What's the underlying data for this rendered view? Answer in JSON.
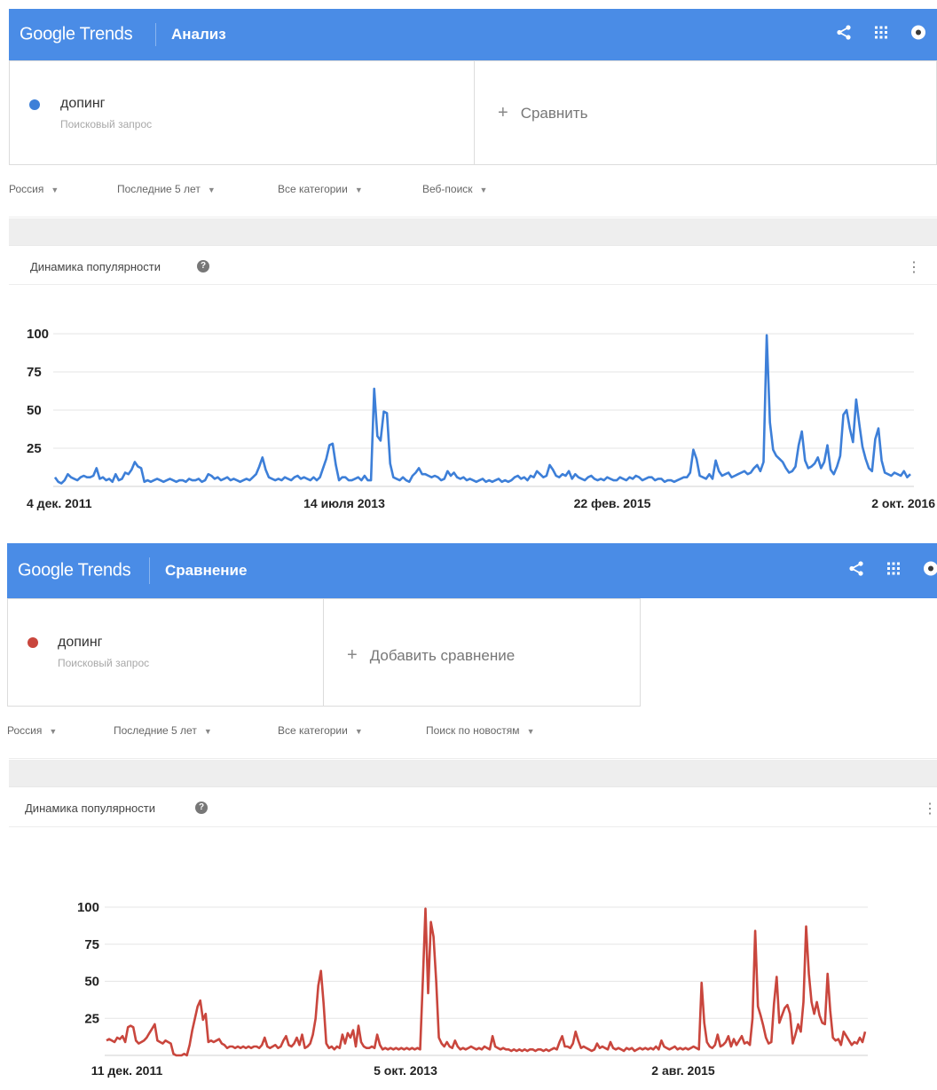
{
  "panels": [
    {
      "header": {
        "brand": "Google Trends",
        "section": "Анализ"
      },
      "term": {
        "name": "допинг",
        "subtitle": "Поисковый запрос",
        "color": "#3d7fd8"
      },
      "compare_label": "Сравнить",
      "filters": [
        "Россия",
        "Последние 5 лет",
        "Все категории",
        "Веб-поиск"
      ],
      "graph_title": "Динамика популярности",
      "icons": [
        "share-icon",
        "apps-grid-icon",
        "account-icon",
        "help-icon",
        "more-vert-icon",
        "plus-icon",
        "dropdown-caret-icon"
      ]
    },
    {
      "header": {
        "brand": "Google Trends",
        "section": "Сравнение"
      },
      "term": {
        "name": "допинг",
        "subtitle": "Поисковый запрос",
        "color": "#c9463d"
      },
      "compare_label": "Добавить сравнение",
      "filters": [
        "Россия",
        "Последние 5 лет",
        "Все категории",
        "Поиск по новостям"
      ],
      "graph_title": "Динамика популярности",
      "icons": [
        "share-icon",
        "apps-grid-icon",
        "account-icon",
        "help-icon",
        "more-vert-icon",
        "plus-icon",
        "dropdown-caret-icon"
      ]
    }
  ],
  "chart_data": [
    {
      "type": "line",
      "x_tick_labels": [
        "4 дек. 2011",
        "14 июля 2013",
        "22 фев. 2015",
        "2 окт. 2016"
      ],
      "y_ticks": [
        100,
        75,
        50,
        25
      ],
      "ylim": [
        0,
        100
      ],
      "color": "#3d7fd8",
      "grid": true,
      "values": [
        6,
        3,
        2,
        4,
        8,
        6,
        5,
        4,
        6,
        7,
        6,
        6,
        7,
        12,
        5,
        6,
        4,
        5,
        3,
        8,
        4,
        5,
        9,
        8,
        11,
        16,
        13,
        12,
        3,
        4,
        3,
        4,
        5,
        4,
        3,
        4,
        5,
        4,
        3,
        4,
        4,
        3,
        5,
        4,
        4,
        5,
        3,
        4,
        8,
        7,
        5,
        6,
        4,
        5,
        6,
        4,
        5,
        4,
        3,
        4,
        5,
        4,
        6,
        8,
        13,
        19,
        11,
        6,
        5,
        4,
        5,
        4,
        6,
        5,
        4,
        6,
        7,
        5,
        6,
        5,
        4,
        6,
        4,
        6,
        12,
        18,
        27,
        28,
        14,
        4,
        6,
        6,
        4,
        4,
        5,
        6,
        4,
        7,
        4,
        4,
        64,
        33,
        30,
        49,
        48,
        15,
        6,
        5,
        4,
        6,
        4,
        3,
        7,
        9,
        12,
        8,
        8,
        7,
        6,
        7,
        6,
        4,
        5,
        10,
        7,
        9,
        6,
        5,
        6,
        4,
        5,
        4,
        3,
        4,
        5,
        3,
        4,
        3,
        4,
        5,
        3,
        4,
        3,
        4,
        6,
        7,
        5,
        6,
        4,
        7,
        6,
        10,
        8,
        6,
        7,
        14,
        11,
        7,
        6,
        8,
        7,
        10,
        5,
        8,
        6,
        5,
        4,
        6,
        7,
        5,
        4,
        5,
        4,
        6,
        5,
        4,
        4,
        6,
        5,
        4,
        6,
        5,
        7,
        6,
        4,
        5,
        6,
        6,
        4,
        5,
        5,
        3,
        4,
        4,
        3,
        4,
        5,
        6,
        6,
        9,
        24,
        18,
        7,
        6,
        5,
        8,
        5,
        17,
        10,
        7,
        8,
        9,
        6,
        7,
        8,
        9,
        10,
        8,
        9,
        12,
        14,
        10,
        16,
        99,
        42,
        24,
        20,
        18,
        16,
        12,
        9,
        10,
        13,
        27,
        36,
        17,
        12,
        13,
        15,
        19,
        12,
        16,
        27,
        11,
        8,
        13,
        20,
        47,
        50,
        38,
        29,
        57,
        41,
        26,
        18,
        12,
        10,
        31,
        38,
        17,
        9,
        8,
        7,
        9,
        8,
        7,
        10,
        6,
        8
      ]
    },
    {
      "type": "line",
      "x_tick_labels": [
        "11 дек. 2011",
        "5 окт. 2013",
        "2 авг. 2015"
      ],
      "y_ticks": [
        100,
        75,
        50,
        25
      ],
      "ylim": [
        0,
        100
      ],
      "color": "#c9463d",
      "grid": true,
      "values": [
        10,
        11,
        10,
        9,
        12,
        11,
        13,
        9,
        19,
        20,
        19,
        10,
        8,
        9,
        10,
        12,
        15,
        18,
        21,
        10,
        9,
        8,
        10,
        9,
        8,
        1,
        0,
        0,
        0,
        1,
        0,
        7,
        17,
        25,
        33,
        37,
        24,
        28,
        9,
        10,
        9,
        10,
        11,
        8,
        7,
        5,
        6,
        6,
        5,
        6,
        5,
        6,
        5,
        6,
        5,
        6,
        6,
        5,
        7,
        12,
        6,
        5,
        6,
        7,
        5,
        6,
        10,
        13,
        7,
        6,
        8,
        12,
        7,
        14,
        5,
        6,
        8,
        14,
        25,
        47,
        57,
        35,
        8,
        5,
        6,
        4,
        6,
        5,
        14,
        8,
        15,
        12,
        17,
        6,
        20,
        9,
        6,
        5,
        5,
        6,
        5,
        14,
        7,
        4,
        5,
        4,
        5,
        4,
        5,
        4,
        5,
        4,
        5,
        4,
        5,
        4,
        5,
        4,
        50,
        99,
        42,
        90,
        80,
        50,
        12,
        8,
        6,
        9,
        6,
        5,
        10,
        6,
        4,
        5,
        4,
        5,
        6,
        5,
        4,
        5,
        4,
        6,
        5,
        4,
        13,
        6,
        5,
        4,
        5,
        4,
        4,
        3,
        4,
        3,
        4,
        3,
        4,
        3,
        4,
        4,
        3,
        4,
        4,
        3,
        4,
        3,
        4,
        5,
        4,
        9,
        13,
        6,
        6,
        5,
        8,
        16,
        10,
        5,
        6,
        5,
        4,
        3,
        4,
        8,
        5,
        6,
        5,
        4,
        9,
        5,
        4,
        5,
        4,
        3,
        5,
        4,
        5,
        3,
        4,
        5,
        4,
        5,
        4,
        5,
        4,
        6,
        4,
        10,
        6,
        5,
        4,
        5,
        6,
        4,
        5,
        4,
        5,
        4,
        5,
        6,
        5,
        4,
        49,
        22,
        9,
        6,
        5,
        7,
        14,
        6,
        7,
        9,
        13,
        6,
        11,
        7,
        10,
        13,
        8,
        9,
        7,
        25,
        84,
        33,
        27,
        20,
        12,
        8,
        9,
        35,
        53,
        22,
        27,
        32,
        34,
        28,
        8,
        14,
        21,
        16,
        36,
        87,
        55,
        36,
        28,
        36,
        27,
        22,
        21,
        55,
        30,
        12,
        10,
        11,
        7,
        16,
        13,
        10,
        7,
        9,
        8,
        12,
        9,
        16
      ]
    }
  ]
}
